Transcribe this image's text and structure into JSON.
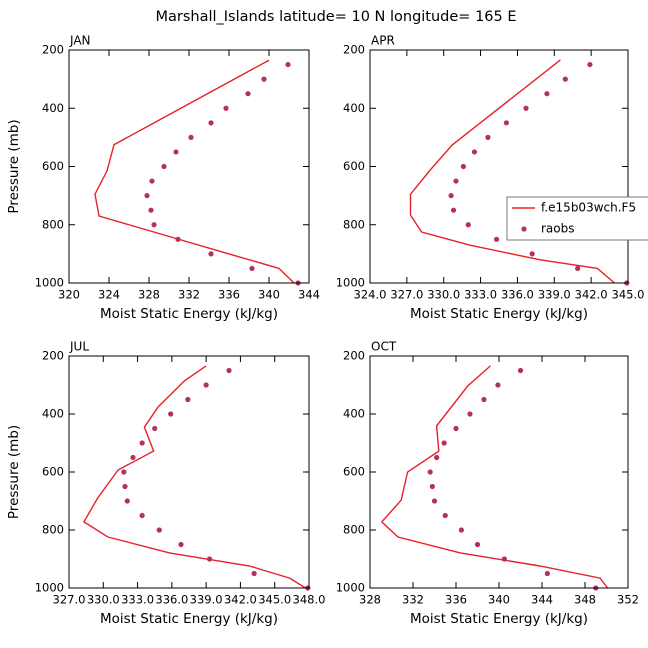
{
  "title": "Marshall_Islands  latitude= 10 N longitude= 165 E",
  "chart_data": [
    {
      "type": "line",
      "title": "JAN",
      "xlabel": "Moist Static Energy (kJ/kg)",
      "ylabel": "Pressure (mb)",
      "xlim": [
        320,
        344
      ],
      "xticks": [
        320,
        324,
        328,
        332,
        336,
        340,
        344
      ],
      "ylim": [
        1000,
        200
      ],
      "yticks": [
        200,
        400,
        600,
        800,
        1000
      ],
      "series": [
        {
          "style": "line",
          "color": "#e8202a",
          "x": [
            340,
            324.5,
            323.8,
            322.6,
            323.0,
            329,
            336,
            341,
            342.5
          ],
          "y": [
            235,
            525,
            615,
            695,
            770,
            830,
            900,
            950,
            1000
          ]
        },
        {
          "style": "marker",
          "color": "#b5305c",
          "x": [
            341.9,
            339.5,
            337.9,
            335.7,
            334.2,
            332.2,
            330.7,
            329.5,
            328.3,
            327.8,
            328.2,
            328.5,
            330.9,
            334.2,
            338.3,
            342.9
          ],
          "y": [
            250,
            300,
            350,
            400,
            450,
            500,
            550,
            600,
            650,
            700,
            750,
            800,
            850,
            900,
            950,
            1000
          ]
        }
      ]
    },
    {
      "type": "line",
      "title": "APR",
      "xlabel": "Moist Static Energy (kJ/kg)",
      "xlim": [
        324,
        345
      ],
      "xticks": [
        {
          "value": 324,
          "label": "324.0"
        },
        {
          "value": 327,
          "label": "327.0"
        },
        {
          "value": 330,
          "label": "330.0"
        },
        {
          "value": 333,
          "label": "333.0"
        },
        {
          "value": 336,
          "label": "336.0"
        },
        {
          "value": 339,
          "label": "339.0"
        },
        {
          "value": 342,
          "label": "342.0"
        },
        {
          "value": 345,
          "label": "345.0"
        }
      ],
      "ylim": [
        1000,
        200
      ],
      "yticks": [
        200,
        400,
        600,
        800,
        1000
      ],
      "legend": "right",
      "series": [
        {
          "name": "f.e15b03wch.F5",
          "style": "line",
          "color": "#e8202a",
          "x": [
            339.5,
            330.7,
            328.9,
            327.3,
            327.3,
            328.2,
            332.1,
            337.8,
            342.5,
            343.9
          ],
          "y": [
            234,
            526,
            612,
            695,
            767,
            825,
            870,
            920,
            950,
            1000
          ]
        },
        {
          "name": "raobs",
          "style": "marker",
          "color": "#b5305c",
          "x": [
            341.9,
            339.9,
            338.4,
            336.7,
            335.1,
            333.6,
            332.5,
            331.6,
            331.0,
            330.6,
            330.8,
            332.0,
            334.3,
            337.2,
            340.9,
            344.9
          ],
          "y": [
            250,
            300,
            350,
            400,
            450,
            500,
            550,
            600,
            650,
            700,
            750,
            800,
            850,
            900,
            950,
            1000
          ]
        }
      ]
    },
    {
      "type": "line",
      "title": "JUL",
      "xlabel": "Moist Static Energy (kJ/kg)",
      "ylabel": "Pressure (mb)",
      "xlim": [
        327,
        348
      ],
      "xticks": [
        {
          "value": 327,
          "label": "327.0"
        },
        {
          "value": 330,
          "label": "330.0"
        },
        {
          "value": 333,
          "label": "333.0"
        },
        {
          "value": 336,
          "label": "336.0"
        },
        {
          "value": 339,
          "label": "339.0"
        },
        {
          "value": 342,
          "label": "342.0"
        },
        {
          "value": 345,
          "label": "345.0"
        },
        {
          "value": 348,
          "label": "348.0"
        }
      ],
      "ylim": [
        1000,
        200
      ],
      "yticks": [
        200,
        400,
        600,
        800,
        1000
      ],
      "series": [
        {
          "style": "line",
          "color": "#e8202a",
          "x": [
            339,
            337.1,
            334.8,
            333.6,
            334.4,
            331.3,
            329.5,
            328.3,
            330.4,
            335.8,
            342.8,
            346.3,
            347.7
          ],
          "y": [
            234,
            286,
            376,
            445,
            528,
            593,
            690,
            772,
            824,
            879,
            924,
            966,
            1000
          ]
        },
        {
          "style": "marker",
          "color": "#b5305c",
          "x": [
            341.0,
            339.0,
            337.4,
            335.9,
            334.5,
            333.4,
            332.6,
            331.8,
            331.9,
            332.1,
            333.4,
            334.9,
            336.8,
            339.3,
            343.2,
            347.9
          ],
          "y": [
            250,
            300,
            350,
            400,
            450,
            500,
            550,
            600,
            650,
            700,
            750,
            800,
            850,
            900,
            950,
            1000
          ]
        }
      ]
    },
    {
      "type": "line",
      "title": "OCT",
      "xlabel": "Moist Static Energy (kJ/kg)",
      "xlim": [
        328,
        352
      ],
      "xticks": [
        328,
        332,
        336,
        340,
        344,
        348,
        352
      ],
      "ylim": [
        1000,
        200
      ],
      "yticks": [
        200,
        400,
        600,
        800,
        1000
      ],
      "series": [
        {
          "style": "line",
          "color": "#e8202a",
          "x": [
            339.2,
            337.1,
            334.2,
            334.4,
            331.5,
            330.9,
            329.1,
            330.6,
            336.4,
            343.8,
            349.4,
            350.1
          ],
          "y": [
            234,
            303,
            441,
            528,
            600,
            697,
            772,
            824,
            879,
            924,
            966,
            1000
          ]
        },
        {
          "style": "marker",
          "color": "#b5305c",
          "x": [
            342.0,
            339.9,
            338.6,
            337.3,
            336.0,
            334.9,
            334.2,
            333.6,
            333.8,
            334.0,
            335.0,
            336.5,
            338.0,
            340.5,
            344.5,
            349.0
          ],
          "y": [
            250,
            300,
            350,
            400,
            450,
            500,
            550,
            600,
            650,
            700,
            750,
            800,
            850,
            900,
            950,
            1000
          ]
        }
      ]
    }
  ]
}
